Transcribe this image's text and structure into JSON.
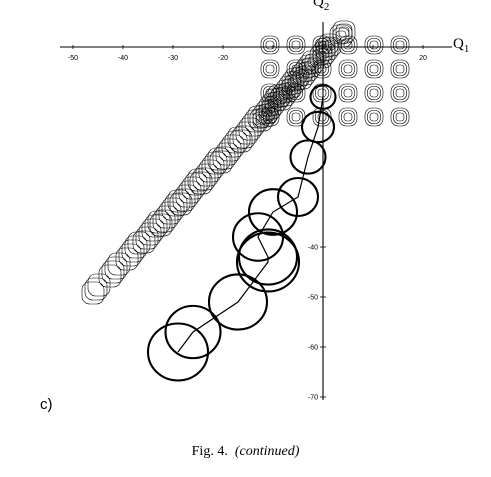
{
  "figure": {
    "x_axis_label": "Q",
    "x_axis_sub": "1",
    "y_axis_label": "Q",
    "y_axis_sub": "2",
    "panel_label": "c)",
    "caption_prefix": "Fig. 4.",
    "caption_suffix": "(continued)"
  },
  "chart_data": {
    "type": "line",
    "title": "",
    "xlabel": "Q1",
    "ylabel": "Q2",
    "x_ticks": [
      -50,
      -40,
      -30,
      -20,
      -10,
      0,
      10,
      20
    ],
    "x_tick_labels": [
      "-50",
      "-40",
      "-30",
      "-20",
      "",
      "",
      "",
      "20"
    ],
    "y_ticks": [
      -40,
      -50,
      -60,
      -70
    ],
    "y_tick_labels": [
      "-40",
      "-50",
      "-60",
      "-70"
    ],
    "xlim": [
      -52,
      24
    ],
    "ylim": [
      -72,
      3
    ],
    "grid": false,
    "series": [
      {
        "kind": "potential-contours",
        "grid_cells_along_diagonal": 12,
        "rings_per_cell_upper": 3
      },
      {
        "kind": "trajectory",
        "loops": [
          {
            "cx": 0,
            "cy": -10,
            "r": 2.5
          },
          {
            "cx": -1,
            "cy": -16,
            "r": 3.2
          },
          {
            "cx": -3,
            "cy": -22,
            "r": 3.5
          },
          {
            "cx": -5,
            "cy": -30,
            "r": 4
          },
          {
            "cx": -10,
            "cy": -33,
            "r": 4.8
          },
          {
            "cx": -13,
            "cy": -38,
            "r": 5
          },
          {
            "cx": -11,
            "cy": -42,
            "r": 5.8
          },
          {
            "cx": -11,
            "cy": -43,
            "r": 6.2
          },
          {
            "cx": -17,
            "cy": -51,
            "r": 5.8
          },
          {
            "cx": -26,
            "cy": -57,
            "r": 5.5
          },
          {
            "cx": -29,
            "cy": -61,
            "r": 6
          }
        ]
      }
    ]
  }
}
